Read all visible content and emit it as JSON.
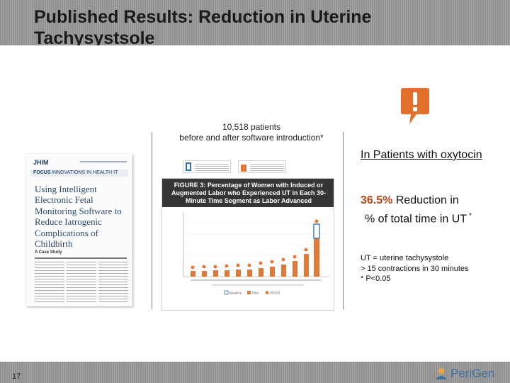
{
  "header": {
    "title": "Published Results: Reduction in Uterine Tachysystsole"
  },
  "caption": {
    "line1": "10,518 patients",
    "line2": "before and after software introduction*"
  },
  "article": {
    "journal": "JHIM",
    "focus_label": "FOCUS",
    "section": "INNOVATIONS IN HEALTH IT",
    "title": "Using Intelligent Electronic Fetal Monitoring Software to Reduce Iatrogenic Complications of Childbirth",
    "subtitle": "A Case Study"
  },
  "figure": {
    "title_lead": "FIGURE 3:",
    "title_rest": "Percentage of Women with Induced or Augmented Labor who Experienced UT in Each 30-Minute Time Segment as Labor Advanced",
    "legend": [
      "Baseline",
      "Pilot",
      "PO/CR"
    ]
  },
  "right_panel": {
    "heading": "In Patients with oxytocin",
    "stat_value": "36.5%",
    "stat_text": "Reduction in",
    "stat_text2": "% of total time in UT",
    "stat_footnote": "*"
  },
  "notes": {
    "line1": "UT = uterine tachysystole",
    "line2": "> 15 contractions in 30 minutes",
    "line3": "* P<0.05"
  },
  "footer": {
    "page_number": "17",
    "logo_text": "PeriGen"
  },
  "colors": {
    "accent_orange": "#e2793a",
    "accent_blue": "#2f6db5",
    "alert": "#e0702c"
  }
}
